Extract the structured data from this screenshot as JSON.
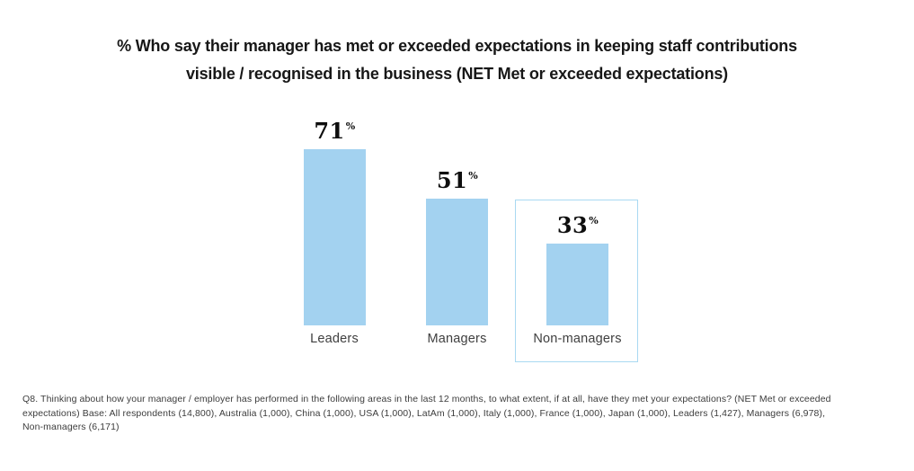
{
  "chart_data": {
    "type": "bar",
    "title": "% Who say their manager has met or exceeded expectations in keeping staff contributions visible / recognised in the business (NET Met or exceeded expectations)",
    "title_lines": [
      "% Who say their manager has met or exceeded expectations in keeping staff contributions",
      "visible / recognised in the business (NET Met or exceeded expectations)"
    ],
    "categories": [
      "Leaders",
      "Managers",
      "Non-managers"
    ],
    "values": [
      71,
      51,
      33
    ],
    "value_labels": [
      "71",
      "51",
      "33"
    ],
    "unit": "%",
    "bar_color": "#a3d2f0",
    "highlighted_category": "Non-managers",
    "highlight_box_color": "#a9d9f2",
    "layout": {
      "axes_visible": false,
      "grid": false,
      "legend": false,
      "value_labels_position": "above-bars"
    }
  },
  "footnote": {
    "text": "Q8. Thinking about how your manager / employer has performed in the following areas in the last 12 months, to what extent, if at all, have they met your expectations? (NET Met or exceeded expectations) Base: All respondents (14,800), Australia (1,000), China (1,000), USA (1,000), LatAm (1,000), Italy (1,000), France (1,000), Japan (1,000), Leaders (1,427), Managers (6,978), Non-managers (6,171)",
    "lines": [
      "Q8. Thinking about how your manager / employer has performed in the following areas in the last 12 months, to what extent, if at all, have they met your expectations? (NET Met or exceeded",
      "expectations) Base: All respondents (14,800), Australia (1,000), China (1,000), USA (1,000), LatAm (1,000), Italy (1,000), France (1,000), Japan (1,000), Leaders (1,427), Managers (6,978),",
      "Non-managers (6,171)"
    ]
  }
}
